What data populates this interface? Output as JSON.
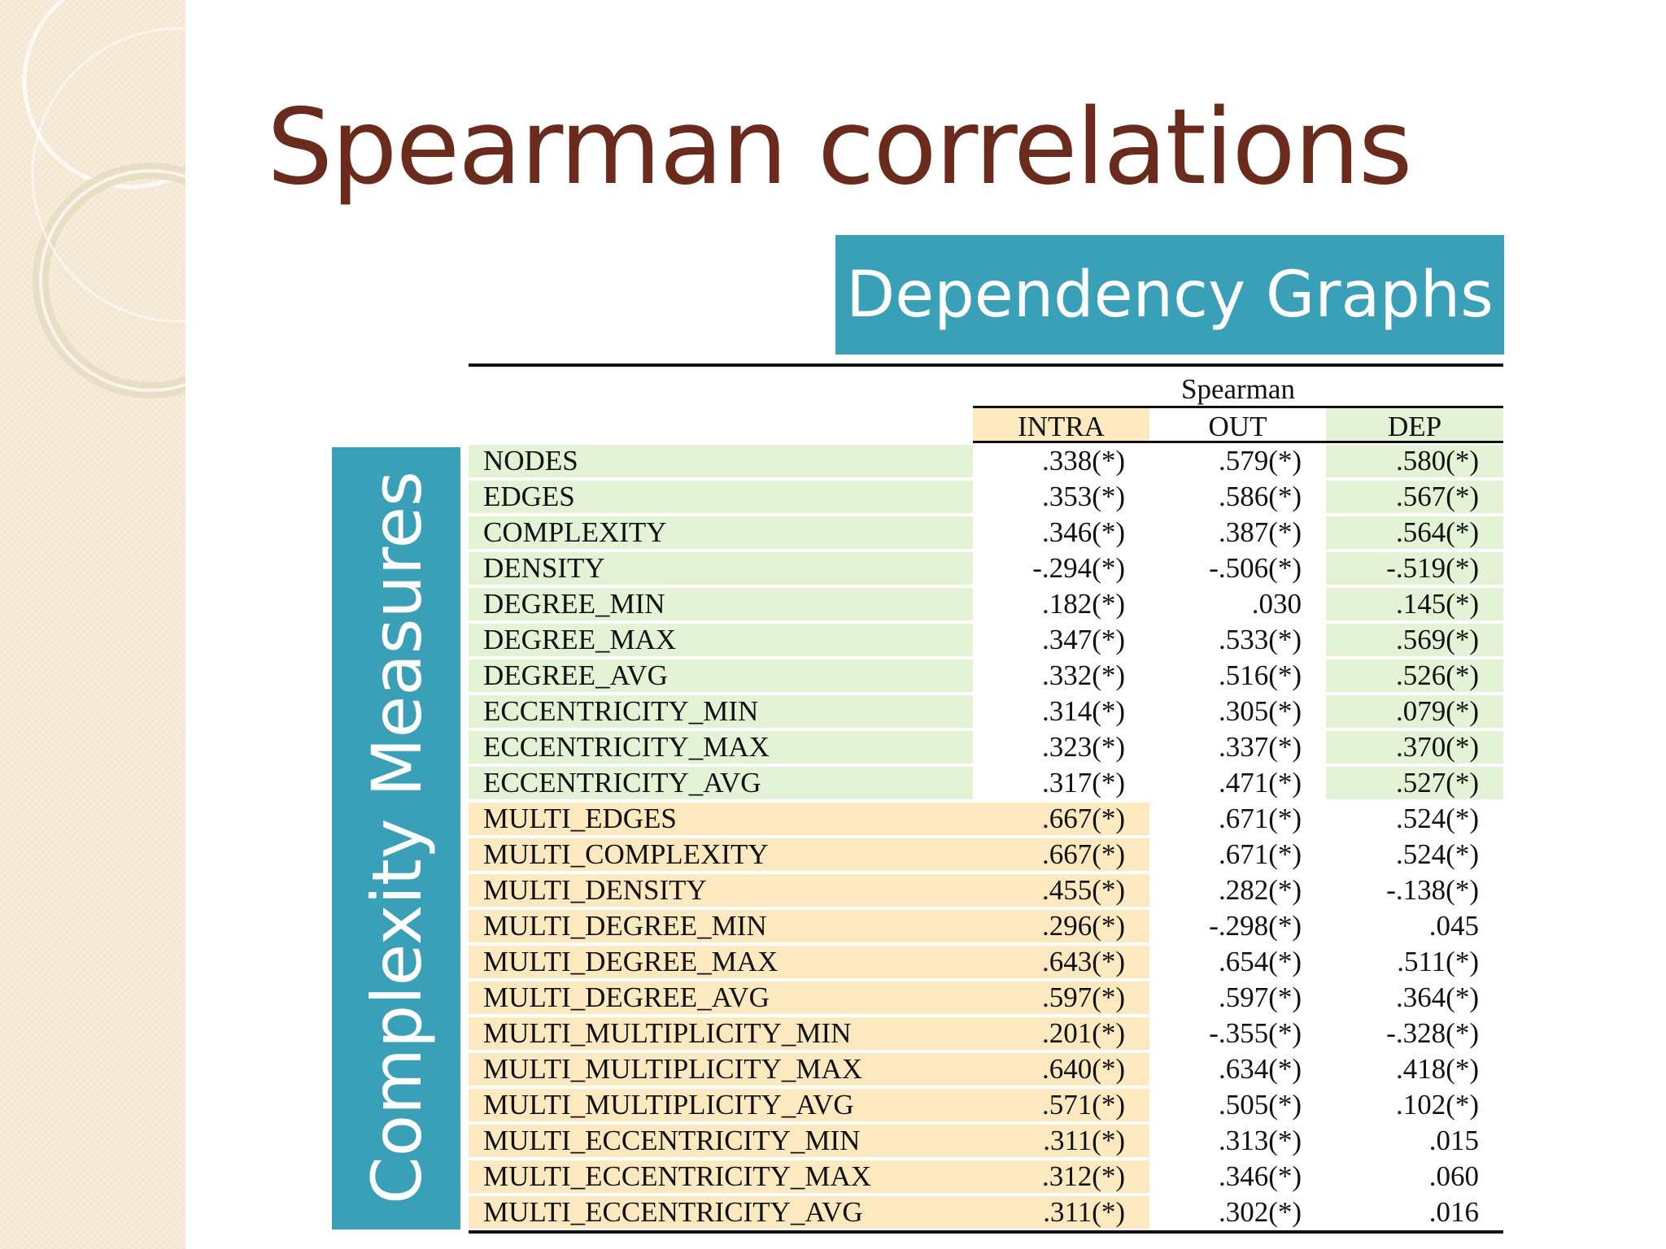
{
  "slide": {
    "title": "Spearman correlations",
    "banner": "Dependency Graphs",
    "side_label": "Complexity Measures"
  },
  "table": {
    "group_header": "Spearman",
    "columns": [
      "INTRA",
      "OUT",
      "DEP"
    ],
    "rows": [
      {
        "label": "NODES",
        "intra": ".338(*)",
        "out": ".579(*)",
        "dep": ".580(*)"
      },
      {
        "label": "EDGES",
        "intra": ".353(*)",
        "out": ".586(*)",
        "dep": ".567(*)"
      },
      {
        "label": "COMPLEXITY",
        "intra": ".346(*)",
        "out": ".387(*)",
        "dep": ".564(*)"
      },
      {
        "label": "DENSITY",
        "intra": "-.294(*)",
        "out": "-.506(*)",
        "dep": "-.519(*)"
      },
      {
        "label": "DEGREE_MIN",
        "intra": ".182(*)",
        "out": ".030",
        "dep": ".145(*)"
      },
      {
        "label": "DEGREE_MAX",
        "intra": ".347(*)",
        "out": ".533(*)",
        "dep": ".569(*)"
      },
      {
        "label": "DEGREE_AVG",
        "intra": ".332(*)",
        "out": ".516(*)",
        "dep": ".526(*)"
      },
      {
        "label": "ECCENTRICITY_MIN",
        "intra": ".314(*)",
        "out": ".305(*)",
        "dep": ".079(*)"
      },
      {
        "label": "ECCENTRICITY_MAX",
        "intra": ".323(*)",
        "out": ".337(*)",
        "dep": ".370(*)"
      },
      {
        "label": "ECCENTRICITY_AVG",
        "intra": ".317(*)",
        "out": ".471(*)",
        "dep": ".527(*)"
      },
      {
        "label": "MULTI_EDGES",
        "intra": ".667(*)",
        "out": ".671(*)",
        "dep": ".524(*)"
      },
      {
        "label": "MULTI_COMPLEXITY",
        "intra": ".667(*)",
        "out": ".671(*)",
        "dep": ".524(*)"
      },
      {
        "label": "MULTI_DENSITY",
        "intra": ".455(*)",
        "out": ".282(*)",
        "dep": "-.138(*)"
      },
      {
        "label": "MULTI_DEGREE_MIN",
        "intra": ".296(*)",
        "out": "-.298(*)",
        "dep": ".045"
      },
      {
        "label": "MULTI_DEGREE_MAX",
        "intra": ".643(*)",
        "out": ".654(*)",
        "dep": ".511(*)"
      },
      {
        "label": "MULTI_DEGREE_AVG",
        "intra": ".597(*)",
        "out": ".597(*)",
        "dep": ".364(*)"
      },
      {
        "label": "MULTI_MULTIPLICITY_MIN",
        "intra": ".201(*)",
        "out": "-.355(*)",
        "dep": "-.328(*)"
      },
      {
        "label": "MULTI_MULTIPLICITY_MAX",
        "intra": ".640(*)",
        "out": ".634(*)",
        "dep": ".418(*)"
      },
      {
        "label": "MULTI_MULTIPLICITY_AVG",
        "intra": ".571(*)",
        "out": ".505(*)",
        "dep": ".102(*)"
      },
      {
        "label": "MULTI_ECCENTRICITY_MIN",
        "intra": ".311(*)",
        "out": ".313(*)",
        "dep": ".015"
      },
      {
        "label": "MULTI_ECCENTRICITY_MAX",
        "intra": ".312(*)",
        "out": ".346(*)",
        "dep": ".060"
      },
      {
        "label": "MULTI_ECCENTRICITY_AVG",
        "intra": ".311(*)",
        "out": ".302(*)",
        "dep": ".016"
      }
    ]
  },
  "colors": {
    "title": "#6b2b1c",
    "banner": "#3aa0b7",
    "green_highlight": "#e4f2d5",
    "yellow_highlight": "#fde9bf",
    "left_strip": "#f6ead6"
  }
}
